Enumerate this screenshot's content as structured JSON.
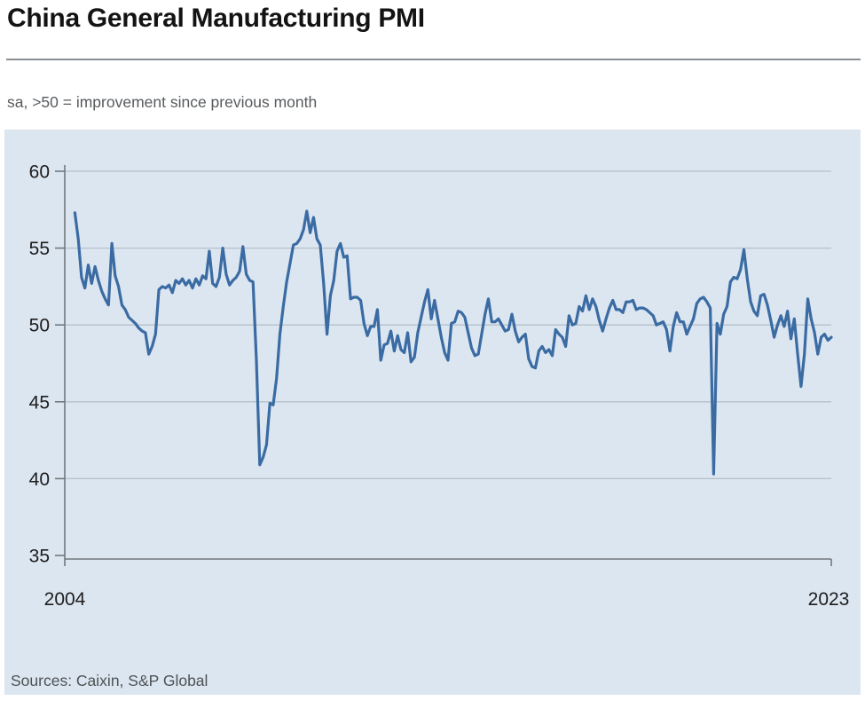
{
  "header": {
    "title": "China General Manufacturing PMI",
    "subtitle": "sa, >50 = improvement since previous month"
  },
  "footer": {
    "sources": "Sources: Caixin, S&P Global"
  },
  "chart_data": {
    "type": "line",
    "title": "China General Manufacturing PMI",
    "subtitle": "sa, >50 = improvement since previous month",
    "series_name": "China General Manufacturing PMI, seasonally adjusted",
    "frequency": "monthly",
    "x_start": "2004-04",
    "x_end": "2023-01",
    "x_tick_labels": [
      "2004",
      "2023"
    ],
    "x_months_span": 228,
    "x_first_point_month": 3,
    "y_ticks": [
      60,
      55,
      50,
      45,
      40,
      35
    ],
    "ylim": [
      35,
      60
    ],
    "reference_level": 50,
    "legend": false,
    "grid": true,
    "values": [
      57.3,
      55.6,
      53.1,
      52.4,
      53.9,
      52.7,
      53.8,
      52.9,
      52.2,
      51.7,
      51.3,
      55.3,
      53.2,
      52.5,
      51.3,
      51.0,
      50.5,
      50.3,
      50.1,
      49.8,
      49.6,
      49.5,
      48.1,
      48.6,
      49.4,
      52.3,
      52.5,
      52.4,
      52.6,
      52.1,
      52.9,
      52.7,
      53.0,
      52.6,
      52.9,
      52.4,
      53.0,
      52.6,
      53.2,
      53.0,
      54.8,
      52.7,
      52.5,
      53.1,
      55.0,
      53.3,
      52.6,
      52.9,
      53.1,
      53.5,
      55.1,
      53.3,
      52.9,
      52.8,
      47.7,
      40.9,
      41.4,
      42.2,
      44.9,
      44.8,
      46.5,
      49.4,
      51.2,
      52.8,
      54.0,
      55.2,
      55.3,
      55.6,
      56.2,
      57.4,
      56.0,
      57.0,
      55.6,
      55.2,
      52.7,
      49.4,
      51.9,
      52.9,
      54.8,
      55.3,
      54.4,
      54.5,
      51.7,
      51.8,
      51.8,
      51.6,
      50.1,
      49.3,
      49.9,
      49.9,
      51.0,
      47.7,
      48.7,
      48.8,
      49.6,
      48.3,
      49.3,
      48.4,
      48.2,
      49.5,
      47.6,
      47.9,
      49.5,
      50.5,
      51.5,
      52.3,
      50.4,
      51.6,
      50.4,
      49.2,
      48.2,
      47.7,
      50.1,
      50.2,
      50.9,
      50.8,
      50.5,
      49.5,
      48.5,
      48.0,
      48.1,
      49.4,
      50.7,
      51.7,
      50.2,
      50.2,
      50.4,
      50.0,
      49.6,
      49.7,
      50.7,
      49.6,
      48.9,
      49.2,
      49.4,
      47.8,
      47.3,
      47.2,
      48.3,
      48.6,
      48.2,
      48.4,
      48.0,
      49.7,
      49.4,
      49.2,
      48.6,
      50.6,
      50.0,
      50.1,
      51.2,
      50.9,
      51.9,
      51.0,
      51.7,
      51.2,
      50.3,
      49.6,
      50.4,
      51.1,
      51.6,
      51.0,
      51.0,
      50.8,
      51.5,
      51.5,
      51.6,
      51.0,
      51.1,
      51.1,
      51.0,
      50.8,
      50.6,
      50.0,
      50.1,
      50.2,
      49.7,
      48.3,
      49.9,
      50.8,
      50.2,
      50.2,
      49.4,
      49.9,
      50.4,
      51.4,
      51.7,
      51.8,
      51.5,
      51.1,
      40.3,
      50.1,
      49.4,
      50.7,
      51.2,
      52.8,
      53.1,
      53.0,
      53.6,
      54.9,
      53.0,
      51.5,
      50.9,
      50.6,
      51.9,
      52.0,
      51.3,
      50.3,
      49.2,
      50.0,
      50.6,
      49.9,
      50.9,
      49.1,
      50.4,
      48.1,
      46.0,
      48.1,
      51.7,
      50.4,
      49.5,
      48.1,
      49.2,
      49.4,
      49.0,
      49.2
    ],
    "colors": {
      "line": "#3a6ba3",
      "plot_background": "#dce6f1",
      "gridline": "#b6c0cb",
      "axis": "#70777e",
      "tick_text": "#1d1d1d"
    }
  }
}
